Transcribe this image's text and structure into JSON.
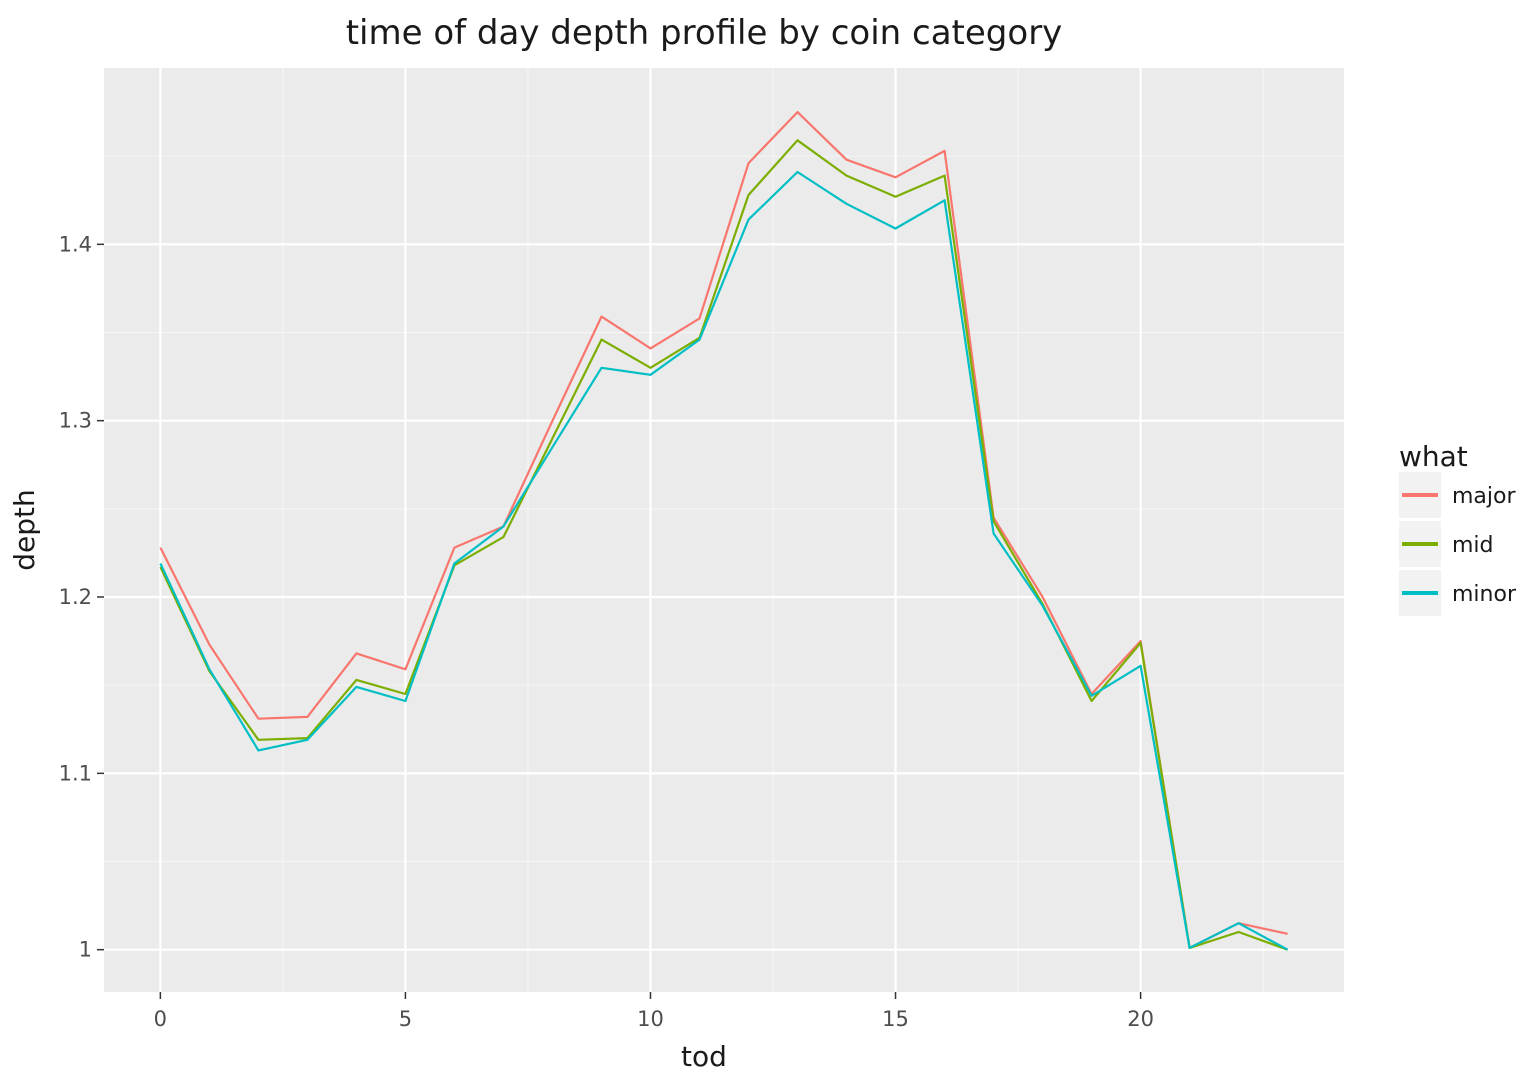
{
  "chart_data": {
    "type": "line",
    "title": "time of day depth profile by coin category",
    "xlabel": "tod",
    "ylabel": "depth",
    "xlim": [
      -1.15,
      24.15
    ],
    "ylim": [
      0.976,
      1.5
    ],
    "x_ticks": [
      0,
      5,
      10,
      15,
      20
    ],
    "x_tick_labels": [
      "0",
      "5",
      "10",
      "15",
      "20"
    ],
    "y_ticks": [
      1.0,
      1.1,
      1.2,
      1.3,
      1.4
    ],
    "y_tick_labels": [
      "1",
      "1.1",
      "1.2",
      "1.3",
      "1.4"
    ],
    "grid": true,
    "legend": {
      "title": "what",
      "position": "right"
    },
    "x": [
      0,
      1,
      2,
      3,
      4,
      5,
      6,
      7,
      8,
      9,
      10,
      11,
      12,
      13,
      14,
      15,
      16,
      17,
      18,
      19,
      20,
      21,
      22,
      23
    ],
    "series": [
      {
        "name": "major",
        "color": "#F8766D",
        "values": [
          1.228,
          1.173,
          1.131,
          1.132,
          1.168,
          1.159,
          1.228,
          1.24,
          1.3,
          1.359,
          1.341,
          1.358,
          1.446,
          1.475,
          1.448,
          1.438,
          1.453,
          1.245,
          1.2,
          1.145,
          1.175,
          1.001,
          1.015,
          1.009
        ]
      },
      {
        "name": "mid",
        "color": "#7CAE00",
        "values": [
          1.217,
          1.158,
          1.119,
          1.12,
          1.153,
          1.145,
          1.218,
          1.234,
          1.29,
          1.346,
          1.33,
          1.347,
          1.428,
          1.459,
          1.439,
          1.427,
          1.439,
          1.243,
          1.196,
          1.141,
          1.174,
          1.001,
          1.01,
          1.0
        ]
      },
      {
        "name": "minor",
        "color": "#00BFC4",
        "values": [
          1.219,
          1.159,
          1.113,
          1.119,
          1.149,
          1.141,
          1.219,
          1.24,
          1.285,
          1.33,
          1.326,
          1.346,
          1.414,
          1.441,
          1.423,
          1.409,
          1.425,
          1.236,
          1.195,
          1.144,
          1.161,
          1.001,
          1.015,
          1.0
        ]
      }
    ]
  }
}
